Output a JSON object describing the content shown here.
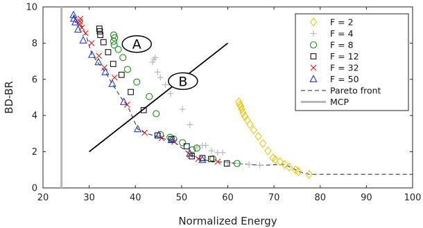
{
  "chart_data": {
    "type": "scatter",
    "xlabel": "Normalized Energy",
    "ylabel": "BD-BR",
    "xlim": [
      20,
      100
    ],
    "ylim": [
      0,
      10
    ],
    "xticks": [
      20,
      30,
      40,
      50,
      60,
      70,
      80,
      90,
      100
    ],
    "yticks": [
      0,
      2,
      4,
      6,
      8,
      10
    ],
    "grid": false,
    "legend_position": "top-right",
    "series": [
      {
        "name": "F = 2",
        "marker": "diamond",
        "color": "#e6c619",
        "points": [
          [
            62.4,
            4.75
          ],
          [
            62.6,
            4.6
          ],
          [
            62.8,
            4.5
          ],
          [
            63.0,
            4.35
          ],
          [
            63.3,
            4.15
          ],
          [
            63.7,
            3.95
          ],
          [
            64.2,
            3.75
          ],
          [
            64.8,
            3.5
          ],
          [
            65.6,
            3.2
          ],
          [
            66.6,
            2.85
          ],
          [
            67.6,
            2.45
          ],
          [
            68.7,
            2.05
          ],
          [
            69.8,
            1.65
          ],
          [
            70.3,
            1.55
          ],
          [
            71.3,
            1.45
          ],
          [
            72.3,
            1.3
          ],
          [
            73.3,
            1.15
          ],
          [
            74.7,
            1.0
          ],
          [
            75.3,
            0.9
          ],
          [
            77.6,
            0.75
          ]
        ]
      },
      {
        "name": "F = 4",
        "marker": "plus",
        "color": "#b3b3b3",
        "points": [
          [
            43.7,
            6.95
          ],
          [
            44.0,
            7.1
          ],
          [
            44.3,
            7.2
          ],
          [
            44.8,
            6.4
          ],
          [
            45.4,
            6.1
          ],
          [
            46.5,
            5.7
          ],
          [
            47.6,
            5.2
          ],
          [
            50.2,
            4.35
          ],
          [
            51.8,
            3.5
          ],
          [
            53.3,
            2.25
          ],
          [
            54.5,
            2.35
          ],
          [
            55.2,
            2.35
          ],
          [
            56.5,
            2.05
          ],
          [
            57.8,
            1.95
          ],
          [
            58.9,
            1.95
          ],
          [
            60.0,
            1.4
          ],
          [
            62.5,
            1.35
          ],
          [
            64.6,
            1.3
          ],
          [
            66.9,
            1.25
          ]
        ]
      },
      {
        "name": "F = 8",
        "marker": "circle",
        "color": "#1a8a1a",
        "points": [
          [
            35.3,
            8.45
          ],
          [
            35.5,
            8.3
          ],
          [
            35.3,
            8.1
          ],
          [
            35.4,
            7.9
          ],
          [
            36.3,
            7.65
          ],
          [
            37.3,
            7.2
          ],
          [
            38.3,
            6.55
          ],
          [
            40.3,
            5.85
          ],
          [
            43.0,
            5.05
          ],
          [
            44.5,
            4.1
          ],
          [
            45.4,
            2.95
          ],
          [
            47.5,
            2.8
          ],
          [
            48.3,
            2.7
          ],
          [
            50.2,
            2.5
          ],
          [
            52.3,
            2.1
          ],
          [
            53.3,
            2.2
          ],
          [
            56.8,
            1.6
          ],
          [
            62.0,
            1.35
          ]
        ]
      },
      {
        "name": "F = 12",
        "marker": "square",
        "color": "#111111",
        "points": [
          [
            32.2,
            8.8
          ],
          [
            32.3,
            8.65
          ],
          [
            32.4,
            8.45
          ],
          [
            33.1,
            8.05
          ],
          [
            34.1,
            7.5
          ],
          [
            35.2,
            6.85
          ],
          [
            37.0,
            6.25
          ],
          [
            39.0,
            5.3
          ],
          [
            41.8,
            4.3
          ],
          [
            44.8,
            2.9
          ],
          [
            47.8,
            2.7
          ],
          [
            51.1,
            2.3
          ],
          [
            52.2,
            1.75
          ],
          [
            54.5,
            1.65
          ],
          [
            56.4,
            1.6
          ],
          [
            59.8,
            1.35
          ]
        ]
      },
      {
        "name": "F = 32",
        "marker": "cross",
        "color": "#dd2222",
        "points": [
          [
            28.1,
            9.35
          ],
          [
            28.0,
            9.2
          ],
          [
            28.0,
            9.05
          ],
          [
            28.4,
            8.85
          ],
          [
            29.2,
            8.55
          ],
          [
            30.5,
            8.0
          ],
          [
            32.1,
            7.3
          ],
          [
            33.3,
            6.65
          ],
          [
            35.5,
            6.1
          ],
          [
            38.2,
            4.6
          ],
          [
            42.0,
            3.05
          ],
          [
            45.7,
            2.75
          ],
          [
            48.4,
            2.55
          ],
          [
            51.8,
            1.85
          ],
          [
            53.6,
            1.6
          ],
          [
            57.8,
            1.45
          ]
        ]
      },
      {
        "name": "F = 50",
        "marker": "triangle",
        "color": "#1f3fc0",
        "points": [
          [
            26.6,
            9.55
          ],
          [
            26.7,
            9.35
          ],
          [
            27.0,
            9.15
          ],
          [
            27.6,
            8.75
          ],
          [
            28.7,
            8.15
          ],
          [
            30.6,
            7.35
          ],
          [
            32.0,
            6.95
          ],
          [
            33.5,
            6.4
          ],
          [
            35.0,
            5.75
          ],
          [
            37.5,
            4.75
          ],
          [
            40.5,
            3.25
          ],
          [
            45.0,
            2.9
          ],
          [
            47.8,
            2.65
          ],
          [
            51.8,
            1.9
          ],
          [
            54.5,
            1.55
          ]
        ]
      },
      {
        "name": "Pareto front",
        "style": "dashed",
        "color": "#222222",
        "points": [
          [
            26.6,
            9.55
          ],
          [
            27.0,
            9.15
          ],
          [
            28.0,
            9.05
          ],
          [
            29.2,
            8.55
          ],
          [
            30.6,
            7.35
          ],
          [
            33.5,
            6.4
          ],
          [
            35.0,
            5.75
          ],
          [
            37.5,
            4.75
          ],
          [
            38.2,
            4.6
          ],
          [
            40.5,
            3.25
          ],
          [
            42.0,
            3.05
          ],
          [
            45.7,
            2.75
          ],
          [
            48.4,
            2.55
          ],
          [
            51.8,
            1.85
          ],
          [
            54.5,
            1.55
          ],
          [
            57.8,
            1.45
          ],
          [
            62.0,
            1.35
          ],
          [
            64.6,
            1.3
          ],
          [
            66.9,
            1.25
          ],
          [
            72.3,
            1.3
          ],
          [
            74.7,
            1.0
          ],
          [
            75.3,
            0.9
          ],
          [
            77.6,
            0.75
          ],
          [
            100,
            0.75
          ]
        ]
      },
      {
        "name": "MCP",
        "style": "vline",
        "color": "#b5b5b5",
        "x": 24
      }
    ],
    "annotations": [
      {
        "label": "A",
        "x": 40.3,
        "y": 7.95
      },
      {
        "label": "B",
        "x": 50.3,
        "y": 5.9
      }
    ],
    "separator_line": [
      [
        30,
        2.0
      ],
      [
        60,
        8.0
      ]
    ]
  }
}
